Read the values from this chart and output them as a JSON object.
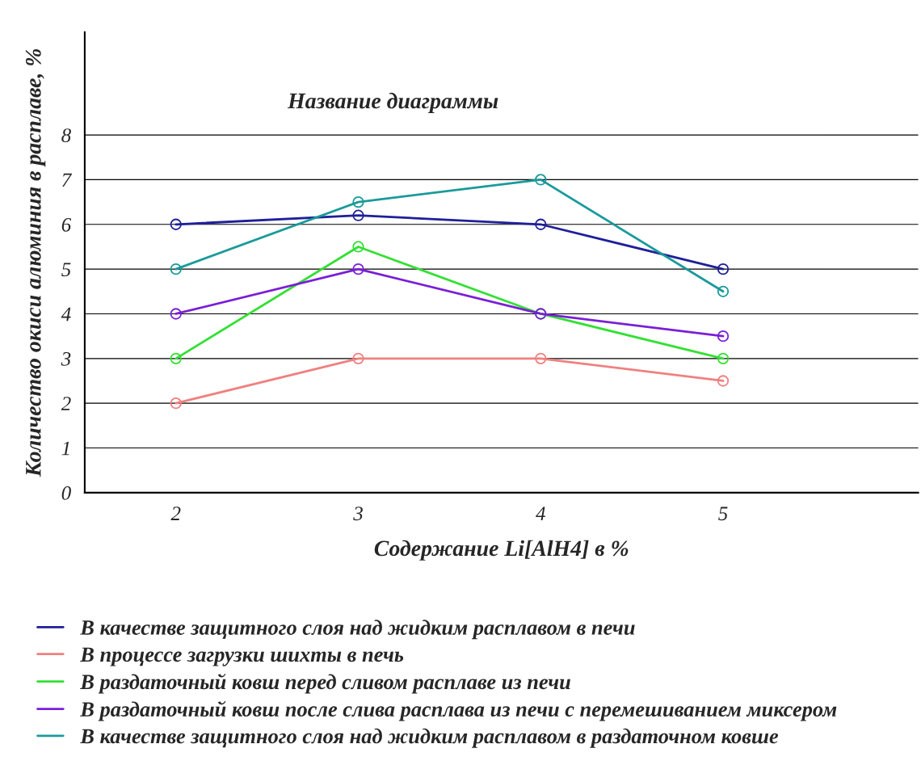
{
  "chart_data": {
    "type": "line",
    "title": "Название диаграммы",
    "xlabel": "Содержание Li[AlH4] в %",
    "ylabel": "Количество окиси алюминия в расплаве, %",
    "x": [
      2,
      3,
      4,
      5
    ],
    "series": [
      {
        "name": "В качестве защитного слоя над жидким расплавом в печи",
        "color": "#1f1f9a",
        "values": [
          6,
          6.2,
          6,
          5
        ]
      },
      {
        "name": "В процессе загрузки шихты в печь",
        "color": "#f08080",
        "values": [
          2,
          3,
          3,
          2.5
        ]
      },
      {
        "name": "В раздаточный ковш перед сливом расплаве из печи",
        "color": "#33e033",
        "values": [
          3,
          5.5,
          4,
          3
        ]
      },
      {
        "name": "В раздаточный ковш после слива расплава из печи с перемешиванием миксером",
        "color": "#7a1fd6",
        "values": [
          4,
          5,
          4,
          3.5
        ]
      },
      {
        "name": "В качестве защитного слоя над жидким расплавом в раздаточном ковше",
        "color": "#1a9a9a",
        "values": [
          5,
          6.5,
          7,
          4.5
        ]
      }
    ],
    "xlim": [
      1.5,
      6.07
    ],
    "xticks": [
      2,
      3,
      4,
      5
    ],
    "ylim": [
      0,
      10.3
    ],
    "yticks": [
      0,
      1,
      2,
      3,
      4,
      5,
      6,
      7,
      8
    ],
    "grid": "y",
    "legend": "bottom",
    "marker": "circle",
    "line_style": "solid"
  }
}
